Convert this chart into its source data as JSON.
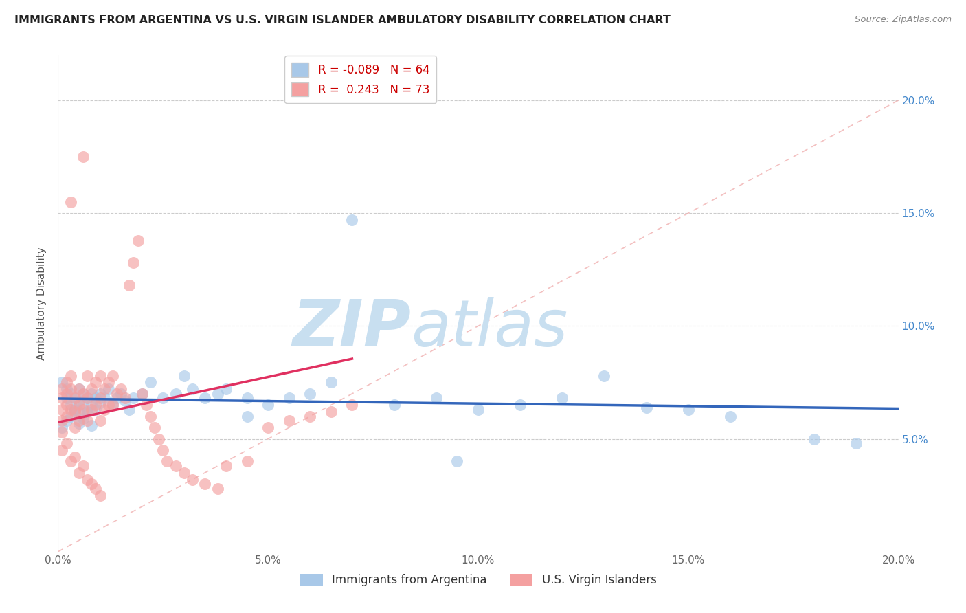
{
  "title": "IMMIGRANTS FROM ARGENTINA VS U.S. VIRGIN ISLANDER AMBULATORY DISABILITY CORRELATION CHART",
  "source": "Source: ZipAtlas.com",
  "ylabel": "Ambulatory Disability",
  "legend_label_blue": "Immigrants from Argentina",
  "legend_label_pink": "U.S. Virgin Islanders",
  "r_blue": -0.089,
  "n_blue": 64,
  "r_pink": 0.243,
  "n_pink": 73,
  "xlim": [
    0.0,
    0.2
  ],
  "ylim": [
    0.0,
    0.22
  ],
  "xticks": [
    0.0,
    0.05,
    0.1,
    0.15,
    0.2
  ],
  "yticks": [
    0.05,
    0.1,
    0.15,
    0.2
  ],
  "ytick_labels": [
    "5.0%",
    "10.0%",
    "15.0%",
    "20.0%"
  ],
  "xtick_labels": [
    "0.0%",
    "5.0%",
    "10.0%",
    "15.0%",
    "20.0%"
  ],
  "color_blue": "#a8c8e8",
  "color_pink": "#f4a0a0",
  "color_trend_blue": "#3366bb",
  "color_trend_pink": "#e03060",
  "watermark_zip": "ZIP",
  "watermark_atlas": "atlas",
  "watermark_color": "#c8dff0",
  "background_color": "#ffffff",
  "blue_x": [
    0.001,
    0.002,
    0.002,
    0.003,
    0.003,
    0.004,
    0.004,
    0.005,
    0.005,
    0.005,
    0.006,
    0.006,
    0.007,
    0.007,
    0.008,
    0.008,
    0.009,
    0.009,
    0.01,
    0.01,
    0.011,
    0.012,
    0.013,
    0.014,
    0.015,
    0.016,
    0.017,
    0.018,
    0.02,
    0.022,
    0.025,
    0.028,
    0.03,
    0.032,
    0.035,
    0.038,
    0.04,
    0.045,
    0.05,
    0.055,
    0.06,
    0.065,
    0.07,
    0.08,
    0.09,
    0.1,
    0.11,
    0.12,
    0.13,
    0.14,
    0.15,
    0.16,
    0.001,
    0.002,
    0.003,
    0.004,
    0.005,
    0.006,
    0.007,
    0.008,
    0.18,
    0.19,
    0.095,
    0.045
  ],
  "blue_y": [
    0.075,
    0.072,
    0.068,
    0.07,
    0.065,
    0.068,
    0.063,
    0.072,
    0.067,
    0.062,
    0.07,
    0.065,
    0.068,
    0.062,
    0.07,
    0.065,
    0.068,
    0.063,
    0.07,
    0.066,
    0.068,
    0.072,
    0.065,
    0.068,
    0.07,
    0.067,
    0.063,
    0.068,
    0.07,
    0.075,
    0.068,
    0.07,
    0.078,
    0.072,
    0.068,
    0.07,
    0.072,
    0.068,
    0.065,
    0.068,
    0.07,
    0.075,
    0.147,
    0.065,
    0.068,
    0.063,
    0.065,
    0.068,
    0.078,
    0.064,
    0.063,
    0.06,
    0.055,
    0.058,
    0.06,
    0.063,
    0.057,
    0.059,
    0.062,
    0.056,
    0.05,
    0.048,
    0.04,
    0.06
  ],
  "pink_x": [
    0.001,
    0.001,
    0.001,
    0.001,
    0.001,
    0.002,
    0.002,
    0.002,
    0.002,
    0.003,
    0.003,
    0.003,
    0.003,
    0.004,
    0.004,
    0.004,
    0.005,
    0.005,
    0.005,
    0.006,
    0.006,
    0.006,
    0.007,
    0.007,
    0.007,
    0.008,
    0.008,
    0.009,
    0.009,
    0.01,
    0.01,
    0.01,
    0.011,
    0.011,
    0.012,
    0.012,
    0.013,
    0.013,
    0.014,
    0.015,
    0.016,
    0.017,
    0.018,
    0.019,
    0.02,
    0.021,
    0.022,
    0.023,
    0.024,
    0.025,
    0.026,
    0.028,
    0.03,
    0.032,
    0.035,
    0.038,
    0.04,
    0.045,
    0.05,
    0.055,
    0.06,
    0.065,
    0.07,
    0.001,
    0.002,
    0.003,
    0.004,
    0.005,
    0.006,
    0.007,
    0.008,
    0.009,
    0.01
  ],
  "pink_y": [
    0.072,
    0.068,
    0.063,
    0.058,
    0.053,
    0.075,
    0.07,
    0.065,
    0.06,
    0.155,
    0.078,
    0.072,
    0.063,
    0.068,
    0.062,
    0.055,
    0.072,
    0.065,
    0.058,
    0.175,
    0.07,
    0.063,
    0.078,
    0.068,
    0.058,
    0.072,
    0.063,
    0.075,
    0.065,
    0.078,
    0.068,
    0.058,
    0.072,
    0.063,
    0.075,
    0.065,
    0.078,
    0.065,
    0.07,
    0.072,
    0.068,
    0.118,
    0.128,
    0.138,
    0.07,
    0.065,
    0.06,
    0.055,
    0.05,
    0.045,
    0.04,
    0.038,
    0.035,
    0.032,
    0.03,
    0.028,
    0.038,
    0.04,
    0.055,
    0.058,
    0.06,
    0.062,
    0.065,
    0.045,
    0.048,
    0.04,
    0.042,
    0.035,
    0.038,
    0.032,
    0.03,
    0.028,
    0.025
  ]
}
